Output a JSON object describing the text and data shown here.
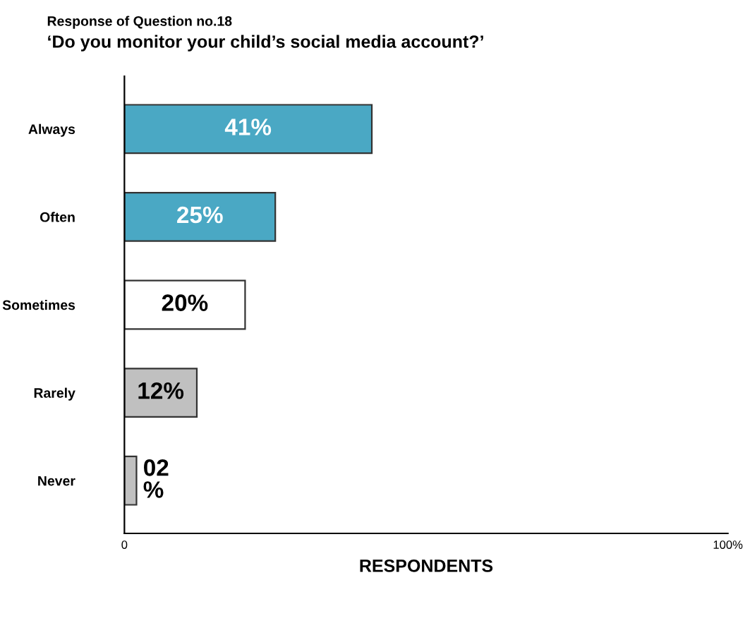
{
  "chart_data": {
    "type": "bar",
    "orientation": "horizontal",
    "title": "Response of Question no.18",
    "subtitle": "‘Do you monitor your child’s social media account?’",
    "xlabel": "RESPONDENTS",
    "categories": [
      "Always",
      "Often",
      "Sometimes",
      "Rarely",
      "Never"
    ],
    "values": [
      41,
      25,
      20,
      12,
      2
    ],
    "colors": [
      "#4aa8c4",
      "#4aa8c4",
      "#ffffff",
      "#c0c0c0",
      "#c0c0c0"
    ],
    "value_labels": [
      "41%",
      "25%",
      "20%",
      "12%",
      "02\n%"
    ],
    "xlim": [
      0,
      100
    ],
    "xticks": [
      {
        "value": 0,
        "label": "0"
      },
      {
        "value": 100,
        "label": "100%"
      }
    ],
    "grid": false
  }
}
